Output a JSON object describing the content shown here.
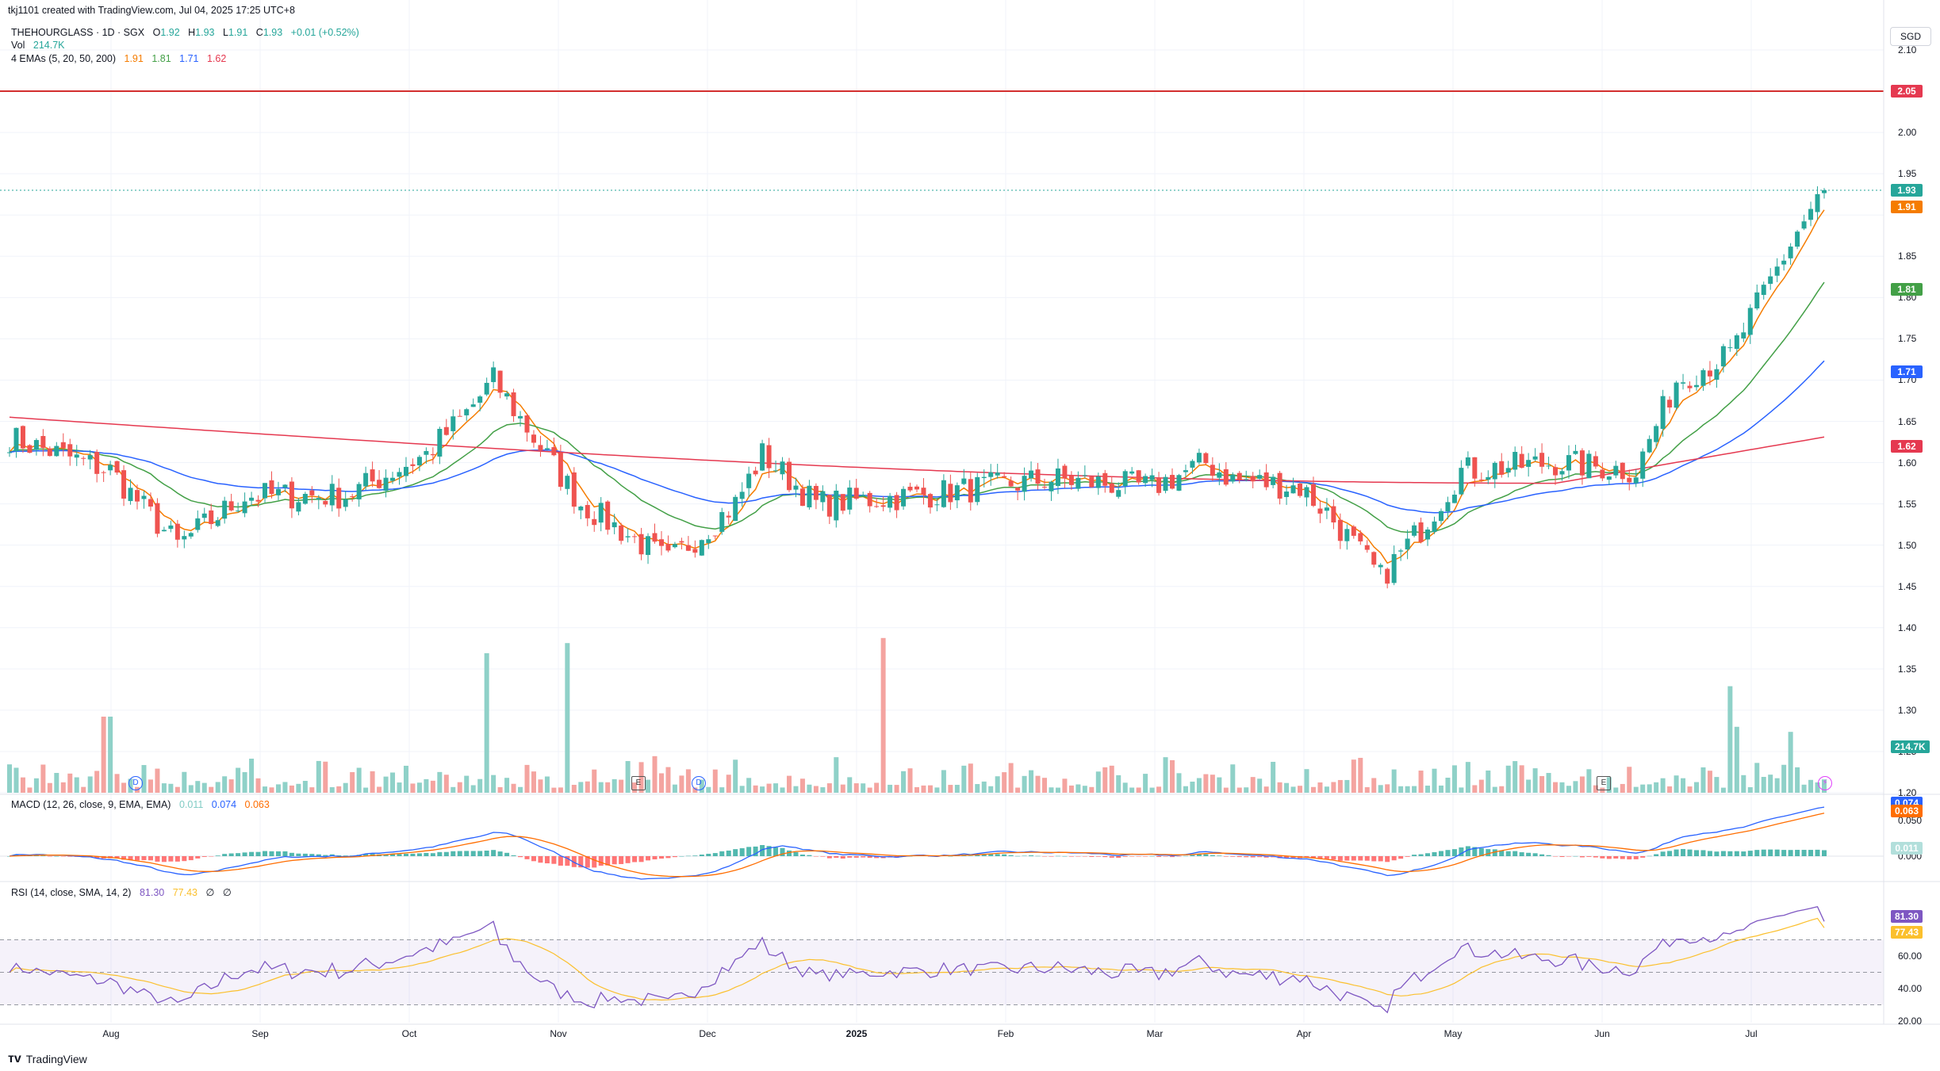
{
  "meta": {
    "creator_line": "tkj1101 created with TradingView.com, Jul 04, 2025 17:25 UTC+8",
    "brand": "TradingView"
  },
  "legend": {
    "symbol": "THEHOURGLASS · 1D · SGX",
    "o_label": "O",
    "open": "1.92",
    "h_label": "H",
    "high": "1.93",
    "l_label": "L",
    "low": "1.91",
    "c_label": "C",
    "close": "1.93",
    "change": "+0.01 (+0.52%)",
    "vol_label": "Vol",
    "vol": "214.7K",
    "ema_label": "4 EMAs (5, 20, 50, 200)",
    "ema_values": [
      "1.91",
      "1.81",
      "1.71",
      "1.62"
    ],
    "macd_label": "MACD (12, 26, close, 9, EMA, EMA)",
    "macd_values": [
      "0.011",
      "0.074",
      "0.063"
    ],
    "rsi_label": "RSI (14, close, SMA, 14, 2)",
    "rsi_values": [
      "81.30",
      "77.43",
      "∅",
      "∅"
    ]
  },
  "currency": "SGD",
  "colors": {
    "up": "#26a69a",
    "down": "#ef5350",
    "vol_up": "#8fd1c8",
    "vol_down": "#f4a4a0",
    "ema5": "#f57c00",
    "ema20": "#43a047",
    "ema50": "#2962ff",
    "ema200": "#e53950",
    "alert": "#d32f2f",
    "macd": "#2962ff",
    "signal": "#ff6d00",
    "rsi": "#7e57c2",
    "rsi_ma": "#fbc02d"
  },
  "price_axis": {
    "ticks": [
      "2.10",
      "2.00",
      "1.95",
      "1.85",
      "1.80",
      "1.75",
      "1.70",
      "1.65",
      "1.60",
      "1.55",
      "1.50",
      "1.45",
      "1.40",
      "1.35",
      "1.30",
      "1.25",
      "1.20"
    ],
    "pills": [
      {
        "text": "2.05",
        "color": "#e53950"
      },
      {
        "text": "1.93",
        "color": "#26a69a"
      },
      {
        "text": "1.91",
        "color": "#f57c00"
      },
      {
        "text": "1.81",
        "color": "#43a047"
      },
      {
        "text": "1.71",
        "color": "#2962ff"
      },
      {
        "text": "1.62",
        "color": "#e53950"
      },
      {
        "text": "214.7K",
        "color": "#26a69a"
      }
    ],
    "alert_level": 2.05
  },
  "macd_axis": {
    "ticks": [
      "0.050",
      "0.000"
    ],
    "pills": [
      {
        "text": "0.074",
        "color": "#2962ff"
      },
      {
        "text": "0.063",
        "color": "#ff6d00"
      },
      {
        "text": "0.011",
        "color": "#b2dfdb"
      }
    ]
  },
  "rsi_axis": {
    "ticks": [
      "60.00",
      "40.00",
      "20.00"
    ],
    "pills": [
      {
        "text": "81.30",
        "color": "#7e57c2"
      },
      {
        "text": "77.43",
        "color": "#fbc02d"
      }
    ]
  },
  "months": [
    {
      "label": "Aug",
      "bold": false
    },
    {
      "label": "Sep",
      "bold": false
    },
    {
      "label": "Oct",
      "bold": false
    },
    {
      "label": "Nov",
      "bold": false
    },
    {
      "label": "Dec",
      "bold": false
    },
    {
      "label": "2025",
      "bold": true
    },
    {
      "label": "Feb",
      "bold": false
    },
    {
      "label": "Mar",
      "bold": false
    },
    {
      "label": "Apr",
      "bold": false
    },
    {
      "label": "May",
      "bold": false
    },
    {
      "label": "Jun",
      "bold": false
    },
    {
      "label": "Jul",
      "bold": false
    }
  ],
  "events": [
    {
      "label": "D",
      "kind": "dividend"
    },
    {
      "label": "E",
      "kind": "earnings"
    },
    {
      "label": "D",
      "kind": "dividend"
    },
    {
      "label": "E",
      "kind": "earnings"
    },
    {
      "label": "⚡",
      "kind": "split"
    }
  ],
  "chart_data": {
    "type": "candlestick",
    "interval": "1D",
    "ylim": [
      1.2,
      2.1
    ],
    "ohlc_anchors": [
      {
        "i": 0,
        "c": 1.63
      },
      {
        "i": 15,
        "c": 1.59
      },
      {
        "i": 25,
        "c": 1.5
      },
      {
        "i": 35,
        "c": 1.56
      },
      {
        "i": 50,
        "c": 1.56
      },
      {
        "i": 62,
        "c": 1.61
      },
      {
        "i": 68,
        "c": 1.66
      },
      {
        "i": 72,
        "c": 1.7
      },
      {
        "i": 78,
        "c": 1.63
      },
      {
        "i": 85,
        "c": 1.55
      },
      {
        "i": 98,
        "c": 1.48
      },
      {
        "i": 108,
        "c": 1.55
      },
      {
        "i": 112,
        "c": 1.61
      },
      {
        "i": 120,
        "c": 1.55
      },
      {
        "i": 135,
        "c": 1.56
      },
      {
        "i": 155,
        "c": 1.58
      },
      {
        "i": 170,
        "c": 1.57
      },
      {
        "i": 178,
        "c": 1.6
      },
      {
        "i": 182,
        "c": 1.58
      },
      {
        "i": 192,
        "c": 1.57
      },
      {
        "i": 196,
        "c": 1.54
      },
      {
        "i": 204,
        "c": 1.46
      },
      {
        "i": 210,
        "c": 1.52
      },
      {
        "i": 216,
        "c": 1.59
      },
      {
        "i": 230,
        "c": 1.6
      },
      {
        "i": 242,
        "c": 1.59
      },
      {
        "i": 248,
        "c": 1.7
      },
      {
        "i": 256,
        "c": 1.73
      },
      {
        "i": 262,
        "c": 1.82
      },
      {
        "i": 266,
        "c": 1.88
      },
      {
        "i": 270,
        "c": 1.93
      }
    ],
    "bar_count": 271,
    "ema_last": {
      "ema5": 1.91,
      "ema20": 1.81,
      "ema50": 1.71,
      "ema200": 1.62
    },
    "volume_last": "214.7K",
    "macd_last": {
      "hist": 0.011,
      "macd": 0.074,
      "signal": 0.063
    },
    "rsi_last": {
      "rsi": 81.3,
      "ma": 77.43
    },
    "rsi_bands": [
      70,
      50,
      30
    ]
  }
}
